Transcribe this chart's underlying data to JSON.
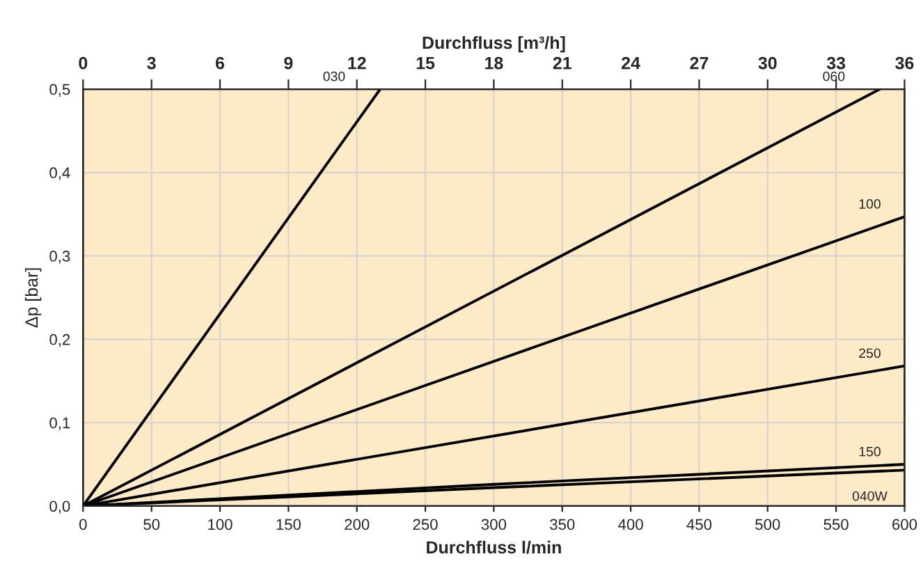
{
  "chart_data": {
    "type": "line",
    "xlabel": "Durchfluss l/min",
    "ylabel": "Δp [bar]",
    "x2label": "Durchfluss [m³/h]",
    "series": [
      {
        "name": "030",
        "color": "#000000",
        "x": [
          0,
          217
        ],
        "values": [
          0,
          0.5
        ]
      },
      {
        "name": "060",
        "color": "#000000",
        "x": [
          0,
          582
        ],
        "values": [
          0,
          0.5
        ]
      },
      {
        "name": "100",
        "color": "#000000",
        "x": [
          0,
          600
        ],
        "values": [
          0,
          0.347
        ]
      },
      {
        "name": "250",
        "color": "#000000",
        "x": [
          0,
          600
        ],
        "values": [
          0,
          0.168
        ]
      },
      {
        "name": "150",
        "color": "#000000",
        "x": [
          0,
          300,
          600
        ],
        "values": [
          0,
          0.026,
          0.05
        ]
      },
      {
        "name": "040W",
        "color": "#000000",
        "x": [
          0,
          300,
          600
        ],
        "values": [
          0,
          0.022,
          0.043
        ]
      }
    ],
    "xlim": [
      0,
      600
    ],
    "xticks": [
      0,
      50,
      100,
      150,
      200,
      250,
      300,
      350,
      400,
      450,
      500,
      550,
      600
    ],
    "x2lim": [
      0,
      36
    ],
    "x2ticks": [
      0,
      3,
      6,
      9,
      12,
      15,
      18,
      21,
      24,
      27,
      30,
      33,
      36
    ],
    "ylim": [
      0,
      0.5
    ],
    "yticks": [
      {
        "value": 0,
        "label": "0,0"
      },
      {
        "value": 0.1,
        "label": "0,1"
      },
      {
        "value": 0.2,
        "label": "0,2"
      },
      {
        "value": 0.3,
        "label": "0,3"
      },
      {
        "value": 0.4,
        "label": "0,4"
      },
      {
        "value": 0.5,
        "label": "0,5"
      }
    ],
    "grid": true,
    "line_style": "solid",
    "marker": "none"
  }
}
